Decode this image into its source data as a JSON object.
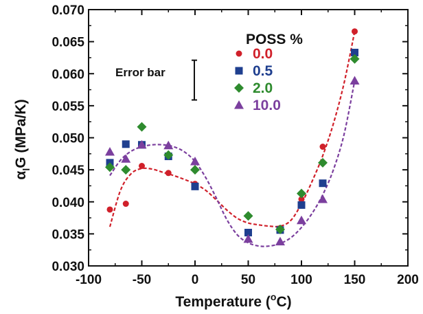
{
  "chart_data": {
    "type": "scatter",
    "title": "",
    "xlabel": "Temperature (",
    "xlabel_sup": "o",
    "xlabel_end": "C)",
    "ylabel_alpha": "α",
    "ylabel_sub": "l",
    "ylabel_rest": "G (MPa/K)",
    "xlim": [
      -100,
      200
    ],
    "ylim": [
      0.03,
      0.07
    ],
    "xticks": [
      -100,
      -50,
      0,
      50,
      100,
      150,
      200
    ],
    "xtick_labels": [
      "-100",
      "-50",
      "0",
      "50",
      "100",
      "150",
      "200"
    ],
    "yticks": [
      0.03,
      0.035,
      0.04,
      0.045,
      0.05,
      0.055,
      0.06,
      0.065,
      0.07
    ],
    "ytick_labels": [
      "0.030",
      "0.035",
      "0.040",
      "0.045",
      "0.050",
      "0.055",
      "0.060",
      "0.065",
      "0.070"
    ],
    "grid": false,
    "legend_title": "POSS %",
    "legend_placement": "top-center",
    "annotation": "Error bar",
    "error_bar_length": 0.0062,
    "series": [
      {
        "name": "0.0",
        "marker": "circle",
        "color": "#d0202a",
        "x": [
          -80,
          -65,
          -50,
          -25,
          0,
          50,
          80,
          100,
          120,
          150
        ],
        "y": [
          0.0388,
          0.0397,
          0.0456,
          0.0445,
          0.0428,
          0.0352,
          0.0359,
          0.0404,
          0.0486,
          0.0666
        ],
        "fit_x": [
          -80,
          -70,
          -60,
          -50,
          -40,
          -30,
          -20,
          -10,
          0,
          10,
          20,
          30,
          40,
          50,
          60,
          70,
          80,
          90,
          100,
          110,
          120,
          130,
          140,
          150
        ],
        "fit_y": [
          0.0361,
          0.0418,
          0.0444,
          0.0452,
          0.0451,
          0.0446,
          0.0441,
          0.0435,
          0.0428,
          0.0418,
          0.0403,
          0.0387,
          0.0374,
          0.0367,
          0.0364,
          0.0362,
          0.0362,
          0.0371,
          0.0397,
          0.0432,
          0.0472,
          0.0522,
          0.0585,
          0.0666
        ]
      },
      {
        "name": "0.5",
        "marker": "square",
        "color": "#1f3f8f",
        "x": [
          -80,
          -65,
          -50,
          -25,
          0,
          50,
          80,
          100,
          120,
          150
        ],
        "y": [
          0.0461,
          0.049,
          0.0489,
          0.0471,
          0.0424,
          0.0352,
          0.0356,
          0.0395,
          0.0429,
          0.0633
        ],
        "fit_x": [],
        "fit_y": []
      },
      {
        "name": "2.0",
        "marker": "diamond",
        "color": "#2e8b2e",
        "x": [
          -80,
          -65,
          -50,
          -25,
          0,
          50,
          80,
          100,
          120,
          150
        ],
        "y": [
          0.0454,
          0.045,
          0.0517,
          0.0473,
          0.045,
          0.0378,
          0.0357,
          0.0413,
          0.0461,
          0.0623
        ],
        "fit_x": [],
        "fit_y": []
      },
      {
        "name": "10.0",
        "marker": "triangle",
        "color": "#7b3f9e",
        "x": [
          -80,
          -65,
          -50,
          -25,
          0,
          50,
          80,
          100,
          120,
          150
        ],
        "y": [
          0.0478,
          0.0467,
          0.0489,
          0.0488,
          0.0463,
          0.0342,
          0.0338,
          0.0371,
          0.0404,
          0.0589
        ],
        "fit_x": [
          -80,
          -70,
          -60,
          -50,
          -40,
          -30,
          -20,
          -10,
          0,
          10,
          20,
          30,
          40,
          50,
          60,
          70,
          80,
          90,
          100,
          110,
          120,
          130,
          140,
          150
        ],
        "fit_y": [
          0.0441,
          0.0465,
          0.0479,
          0.0486,
          0.0489,
          0.0489,
          0.0486,
          0.0478,
          0.0463,
          0.0438,
          0.0406,
          0.0372,
          0.0348,
          0.0336,
          0.0331,
          0.0331,
          0.0335,
          0.0344,
          0.036,
          0.0382,
          0.0411,
          0.045,
          0.0505,
          0.0589
        ]
      }
    ]
  }
}
